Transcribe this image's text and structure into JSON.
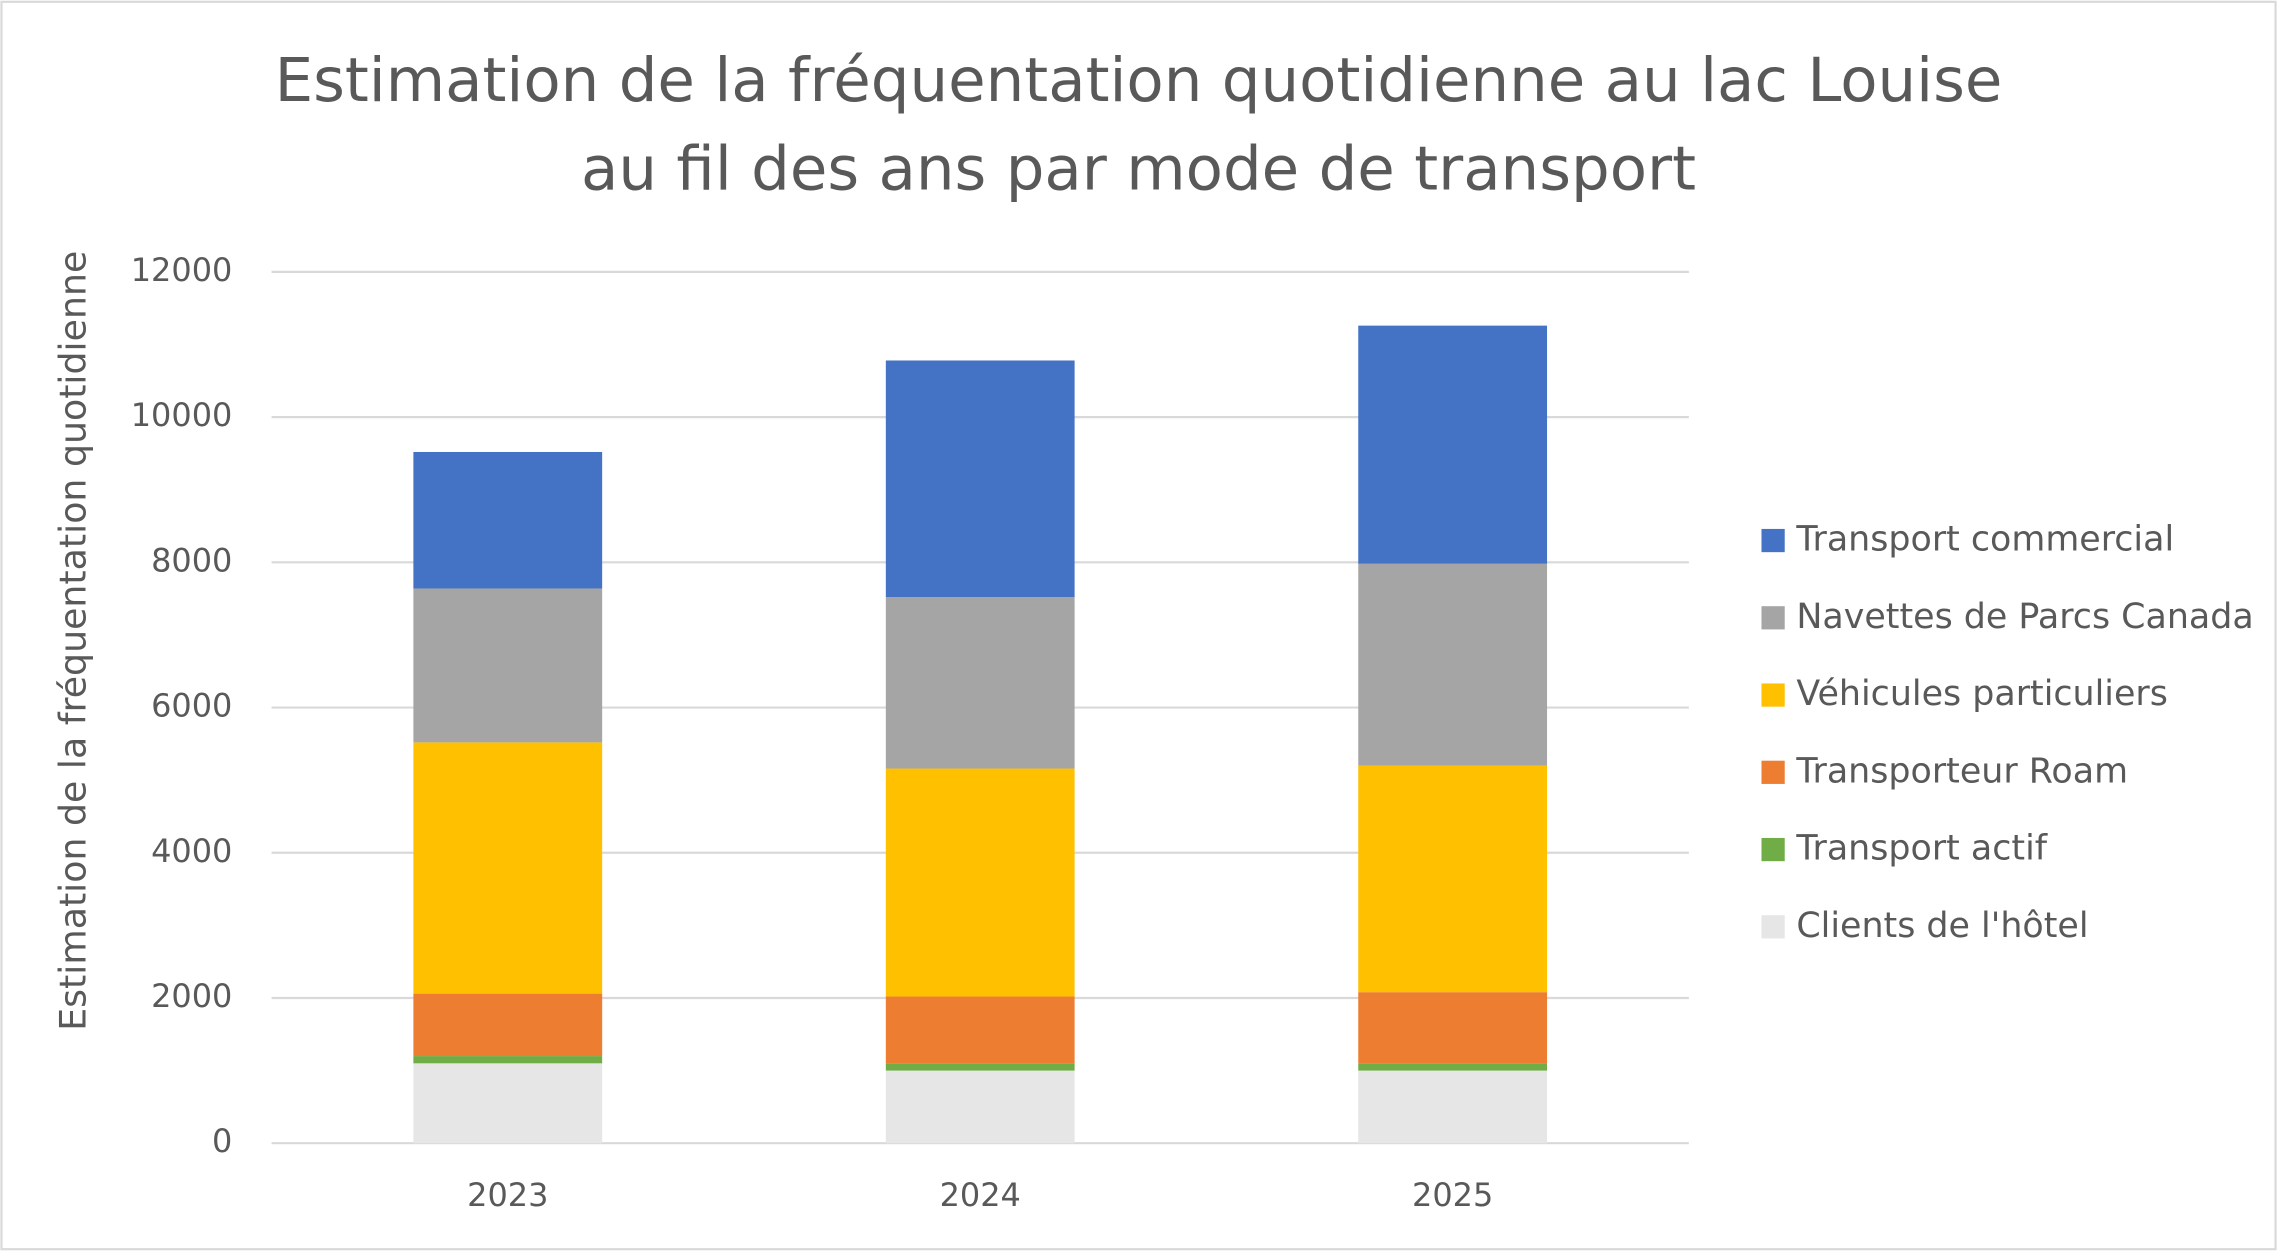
{
  "chart_data": {
    "type": "stacked_bar",
    "title": [
      "Estimation de la fréquentation quotidienne au lac Louise",
      "au fil des ans par mode de transport"
    ],
    "y_label": "Estimation de la fréquentation quotidienne",
    "categories": [
      "2023",
      "2024",
      "2025"
    ],
    "series": [
      {
        "name": "Clients de l'hôtel",
        "color": "#e7e6e6",
        "values": [
          1100,
          1000,
          1000
        ]
      },
      {
        "name": "Transport actif",
        "color": "#70ad47",
        "values": [
          100,
          100,
          100
        ]
      },
      {
        "name": "Transporteur Roam",
        "color": "#ed7d31",
        "values": [
          860,
          920,
          980
        ]
      },
      {
        "name": "Véhicules particuliers",
        "color": "#ffc000",
        "values": [
          3460,
          3140,
          3120
        ]
      },
      {
        "name": "Navettes de Parcs Canada",
        "color": "#a5a5a5",
        "values": [
          2120,
          2360,
          2780
        ]
      },
      {
        "name": "Transport commercial",
        "color": "#4472c4",
        "values": [
          1880,
          3260,
          3280
        ]
      }
    ],
    "ylim": [
      0,
      12000
    ],
    "yticks": [
      0,
      2000,
      4000,
      6000,
      8000,
      10000,
      12000
    ],
    "grid": true,
    "legend": "right"
  }
}
